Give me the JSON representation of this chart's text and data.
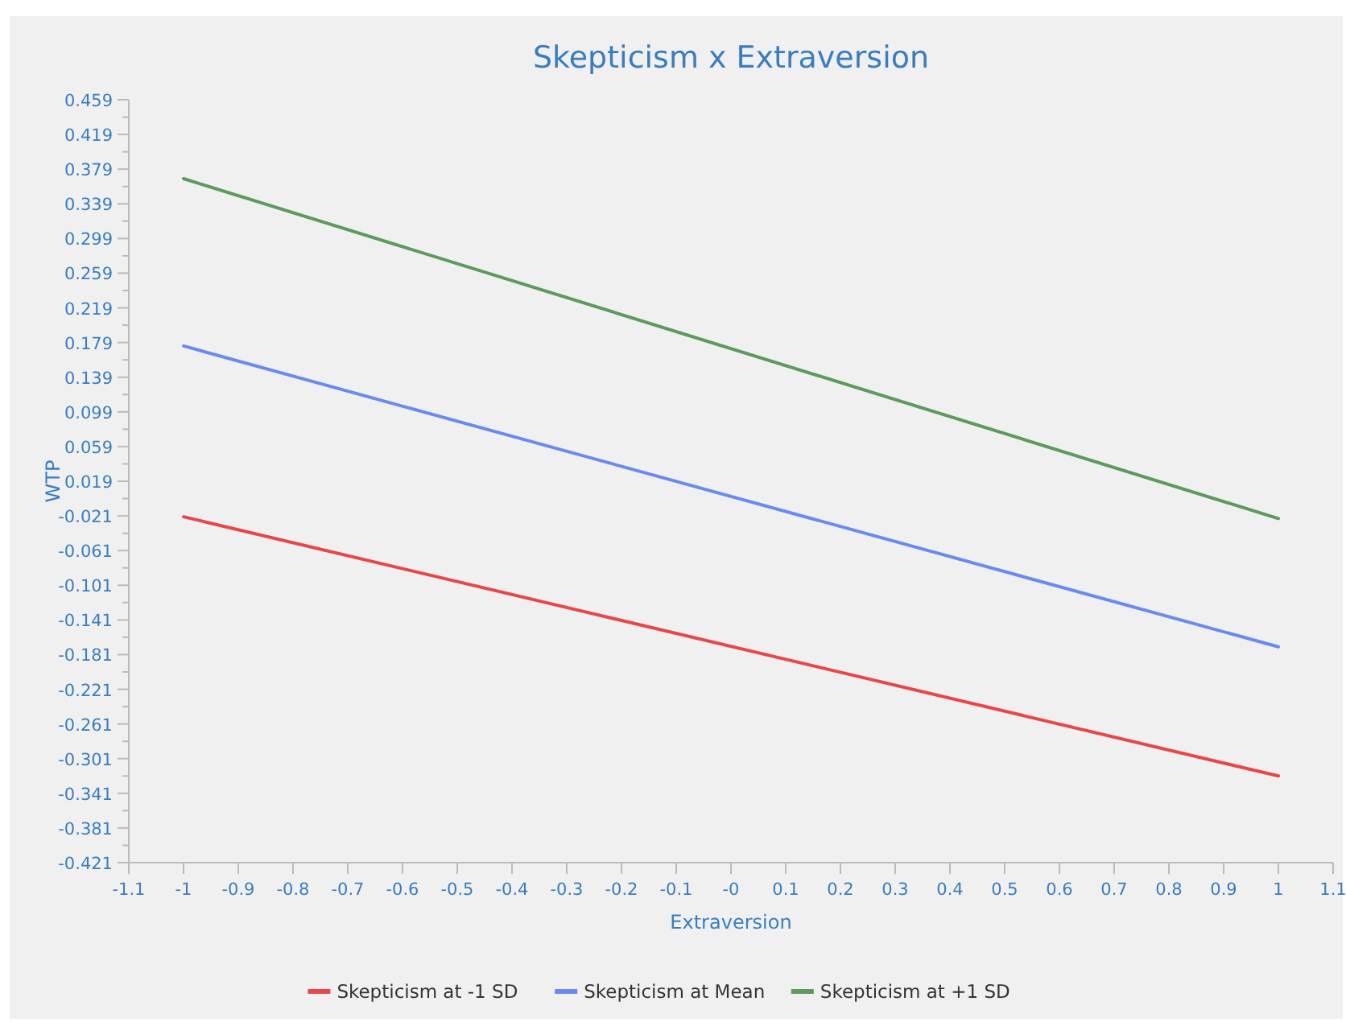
{
  "chart_data": {
    "type": "line",
    "title": "Skepticism x Extraversion",
    "xlabel": "Extraversion",
    "ylabel": "WTP",
    "x": [
      -1,
      1
    ],
    "series": [
      {
        "name": "Skepticism at -1 SD",
        "color": "#e8474a",
        "values": [
          -0.022,
          -0.321
        ]
      },
      {
        "name": "Skepticism at Mean",
        "color": "#6b8af0",
        "values": [
          0.175,
          -0.172
        ]
      },
      {
        "name": "Skepticism at +1 SD",
        "color": "#5e9a5e",
        "values": [
          0.368,
          -0.024
        ]
      }
    ],
    "xlim": [
      -1.1,
      1.1
    ],
    "xticks": [
      -1.1,
      -1,
      -0.9,
      -0.8,
      -0.7,
      -0.6,
      -0.5,
      -0.4,
      -0.3,
      -0.2,
      -0.1,
      {
        "value": 0,
        "label": "-0"
      },
      0.1,
      0.2,
      0.3,
      0.4,
      0.5,
      0.6,
      0.7,
      0.8,
      0.9,
      1,
      1.1
    ],
    "ylim": [
      -0.421,
      0.459
    ],
    "yticks": [
      0.459,
      {
        "value": 0.439,
        "label": null
      },
      0.419,
      {
        "value": 0.399,
        "label": null
      },
      0.379,
      {
        "value": 0.359,
        "label": null
      },
      0.339,
      {
        "value": 0.319,
        "label": null
      },
      0.299,
      {
        "value": 0.279,
        "label": null
      },
      0.259,
      {
        "value": 0.239,
        "label": null
      },
      0.219,
      {
        "value": 0.199,
        "label": null
      },
      0.179,
      {
        "value": 0.159,
        "label": null
      },
      0.139,
      {
        "value": 0.119,
        "label": null
      },
      0.099,
      {
        "value": 0.079,
        "label": null
      },
      0.059,
      {
        "value": 0.039,
        "label": null
      },
      0.019,
      {
        "value": -0.001,
        "label": null
      },
      -0.021,
      {
        "value": -0.041,
        "label": null
      },
      -0.061,
      {
        "value": -0.081,
        "label": null
      },
      -0.101,
      {
        "value": -0.121,
        "label": null
      },
      -0.141,
      {
        "value": -0.161,
        "label": null
      },
      -0.181,
      {
        "value": -0.201,
        "label": null
      },
      -0.221,
      {
        "value": -0.241,
        "label": null
      },
      -0.261,
      {
        "value": -0.281,
        "label": null
      },
      -0.301,
      {
        "value": -0.321,
        "label": null
      },
      -0.341,
      {
        "value": -0.361,
        "label": null
      },
      -0.381,
      {
        "value": -0.401,
        "label": null
      },
      -0.421
    ],
    "legend": "bottom",
    "grid": false,
    "marker": "none",
    "line_style": "solid"
  }
}
